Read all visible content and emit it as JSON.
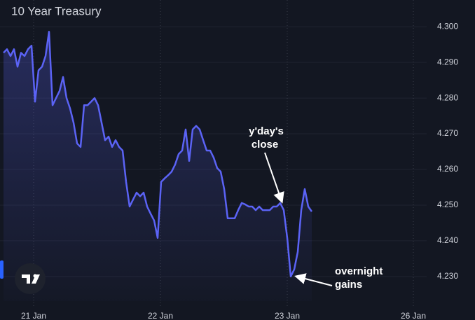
{
  "chart_data": {
    "type": "line",
    "title": "10 Year Treasury",
    "series": [
      {
        "name": "10 Year Treasury",
        "color": "#5b63f5",
        "values": [
          4.2927,
          4.2937,
          4.2918,
          4.2937,
          4.2888,
          4.2927,
          4.2918,
          4.2937,
          4.2947,
          4.279,
          4.2878,
          4.2888,
          4.2918,
          4.2986,
          4.278,
          4.28,
          4.282,
          4.2859,
          4.28,
          4.2771,
          4.2731,
          4.2673,
          4.2663,
          4.278,
          4.278,
          4.279,
          4.28,
          4.278,
          4.2731,
          4.2682,
          4.2692,
          4.2663,
          4.2682,
          4.2663,
          4.2653,
          4.2565,
          4.2496,
          4.2516,
          4.2535,
          4.2525,
          4.2535,
          4.2496,
          4.2476,
          4.2457,
          4.2408,
          4.2565,
          4.2575,
          4.2584,
          4.2594,
          4.2614,
          4.2643,
          4.2653,
          4.2712,
          4.2624,
          4.2712,
          4.2722,
          4.2712,
          4.2682,
          4.2653,
          4.2653,
          4.2633,
          4.2604,
          4.2594,
          4.2545,
          4.2463,
          4.2463,
          4.2463,
          4.2486,
          4.2506,
          4.2502,
          4.2496,
          4.2496,
          4.2486,
          4.2496,
          4.2486,
          4.2486,
          4.2486,
          4.2496,
          4.2496,
          4.2506,
          4.2486,
          4.2408,
          4.23,
          4.232,
          4.2369,
          4.2486,
          4.2545,
          4.2496,
          4.2482
        ]
      }
    ],
    "xlim": [
      -1,
      120.8
    ],
    "xticks": [
      {
        "value": 8.6,
        "label": "21 Jan"
      },
      {
        "value": 44.8,
        "label": "22 Jan"
      },
      {
        "value": 81,
        "label": "23 Jan"
      },
      {
        "value": 117,
        "label": "26 Jan"
      }
    ],
    "ylim": [
      4.2231,
      4.3075
    ],
    "yticks": [
      {
        "value": 4.23,
        "label": "4.230"
      },
      {
        "value": 4.24,
        "label": "4.240"
      },
      {
        "value": 4.25,
        "label": "4.250"
      },
      {
        "value": 4.26,
        "label": "4.260"
      },
      {
        "value": 4.27,
        "label": "4.270"
      },
      {
        "value": 4.28,
        "label": "4.280"
      },
      {
        "value": 4.29,
        "label": "4.290"
      },
      {
        "value": 4.3,
        "label": "4.300"
      }
    ],
    "grid": true,
    "annotations": [
      {
        "lines": [
          "y'day's",
          "close"
        ]
      },
      {
        "lines": [
          "overnight",
          "gains"
        ]
      }
    ]
  }
}
